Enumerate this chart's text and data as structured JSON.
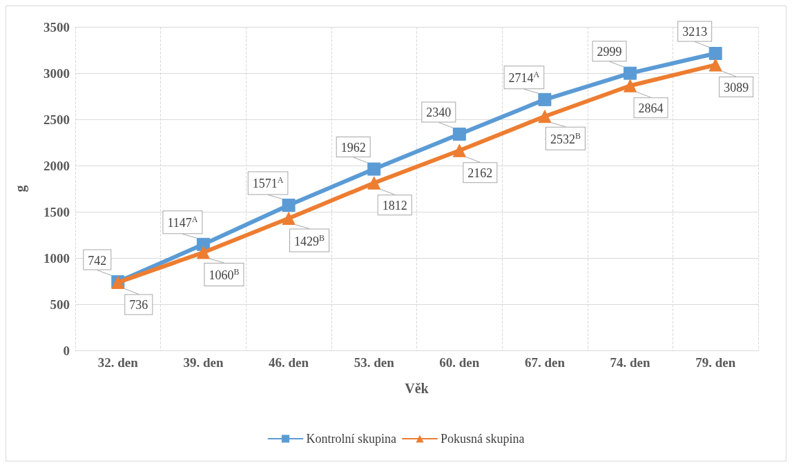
{
  "chart_data": {
    "type": "line",
    "xlabel": "Věk",
    "ylabel": "g",
    "categories": [
      "32. den",
      "39. den",
      "46. den",
      "53. den",
      "60. den",
      "67. den",
      "74. den",
      "79. den"
    ],
    "ylim": [
      0,
      3500
    ],
    "yticks": [
      0,
      500,
      1000,
      1500,
      2000,
      2500,
      3000,
      3500
    ],
    "grid": true,
    "legend": "bottom",
    "line_style": "solid",
    "series": [
      {
        "name": "Kontrolní skupina",
        "color": "#5b9bd5",
        "marker": "square",
        "values": [
          742,
          1147,
          1571,
          1962,
          2340,
          2714,
          2999,
          3213
        ],
        "value_labels": [
          "742",
          "1147$^{A}$",
          "1571$^{A}$",
          "1962",
          "2340",
          "2714$^{A}$",
          "2999",
          "3213"
        ]
      },
      {
        "name": "Pokusná skupina",
        "color": "#ed7d31",
        "marker": "triangle",
        "values": [
          736,
          1060,
          1429,
          1812,
          2162,
          2532,
          2864,
          3089
        ],
        "value_labels": [
          "736",
          "1060$^{B}$",
          "1429$^{B}$",
          "1812",
          "2162",
          "2532$^{B}$",
          "2864",
          "3089"
        ]
      }
    ]
  }
}
